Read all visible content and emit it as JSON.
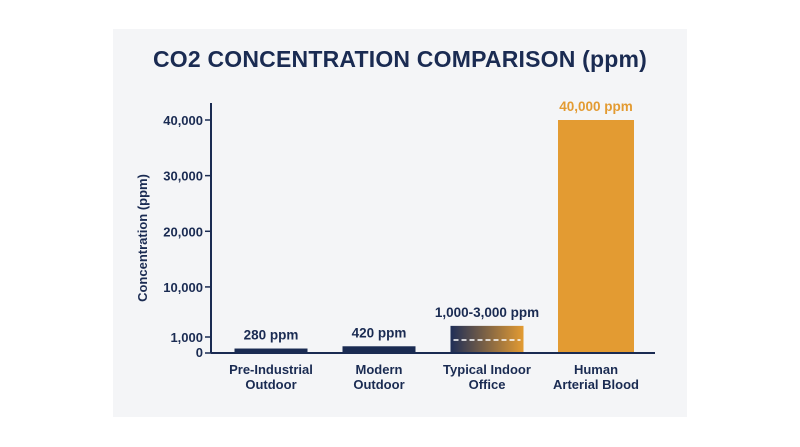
{
  "colors": {
    "navy": "#1a2b52",
    "orange": "#e39b32",
    "panel": "#f4f5f7",
    "gradient_start": "#1f2e57",
    "gradient_end": "#e39b32"
  },
  "chart_data": {
    "type": "bar",
    "title": "CO2 CONCENTRATION COMPARISON (ppm)",
    "xlabel": "",
    "ylabel": "Concentration (ppm)",
    "ylim": [
      0,
      40000
    ],
    "y_ticks": [
      {
        "value": 0,
        "label": "0"
      },
      {
        "value": 1000,
        "label": "1,000"
      },
      {
        "value": 10000,
        "label": "10,000"
      },
      {
        "value": 20000,
        "label": "20,000"
      },
      {
        "value": 30000,
        "label": "30,000"
      },
      {
        "value": 40000,
        "label": "40,000"
      }
    ],
    "categories": [
      [
        "Pre-Industrial",
        "Outdoor"
      ],
      [
        "Modern",
        "Outdoor"
      ],
      [
        "Typical Indoor",
        "Office"
      ],
      [
        "Human",
        "Arterial Blood"
      ]
    ],
    "values": [
      280,
      420,
      3000,
      40000
    ],
    "range_low": [
      null,
      null,
      1000,
      null
    ],
    "data_labels": [
      "280 ppm",
      "420 ppm",
      "1,000-3,000 ppm",
      "40,000 ppm"
    ],
    "bar_colors": [
      "navy",
      "navy",
      "gradient",
      "orange"
    ],
    "grid": false,
    "legend": "none"
  }
}
